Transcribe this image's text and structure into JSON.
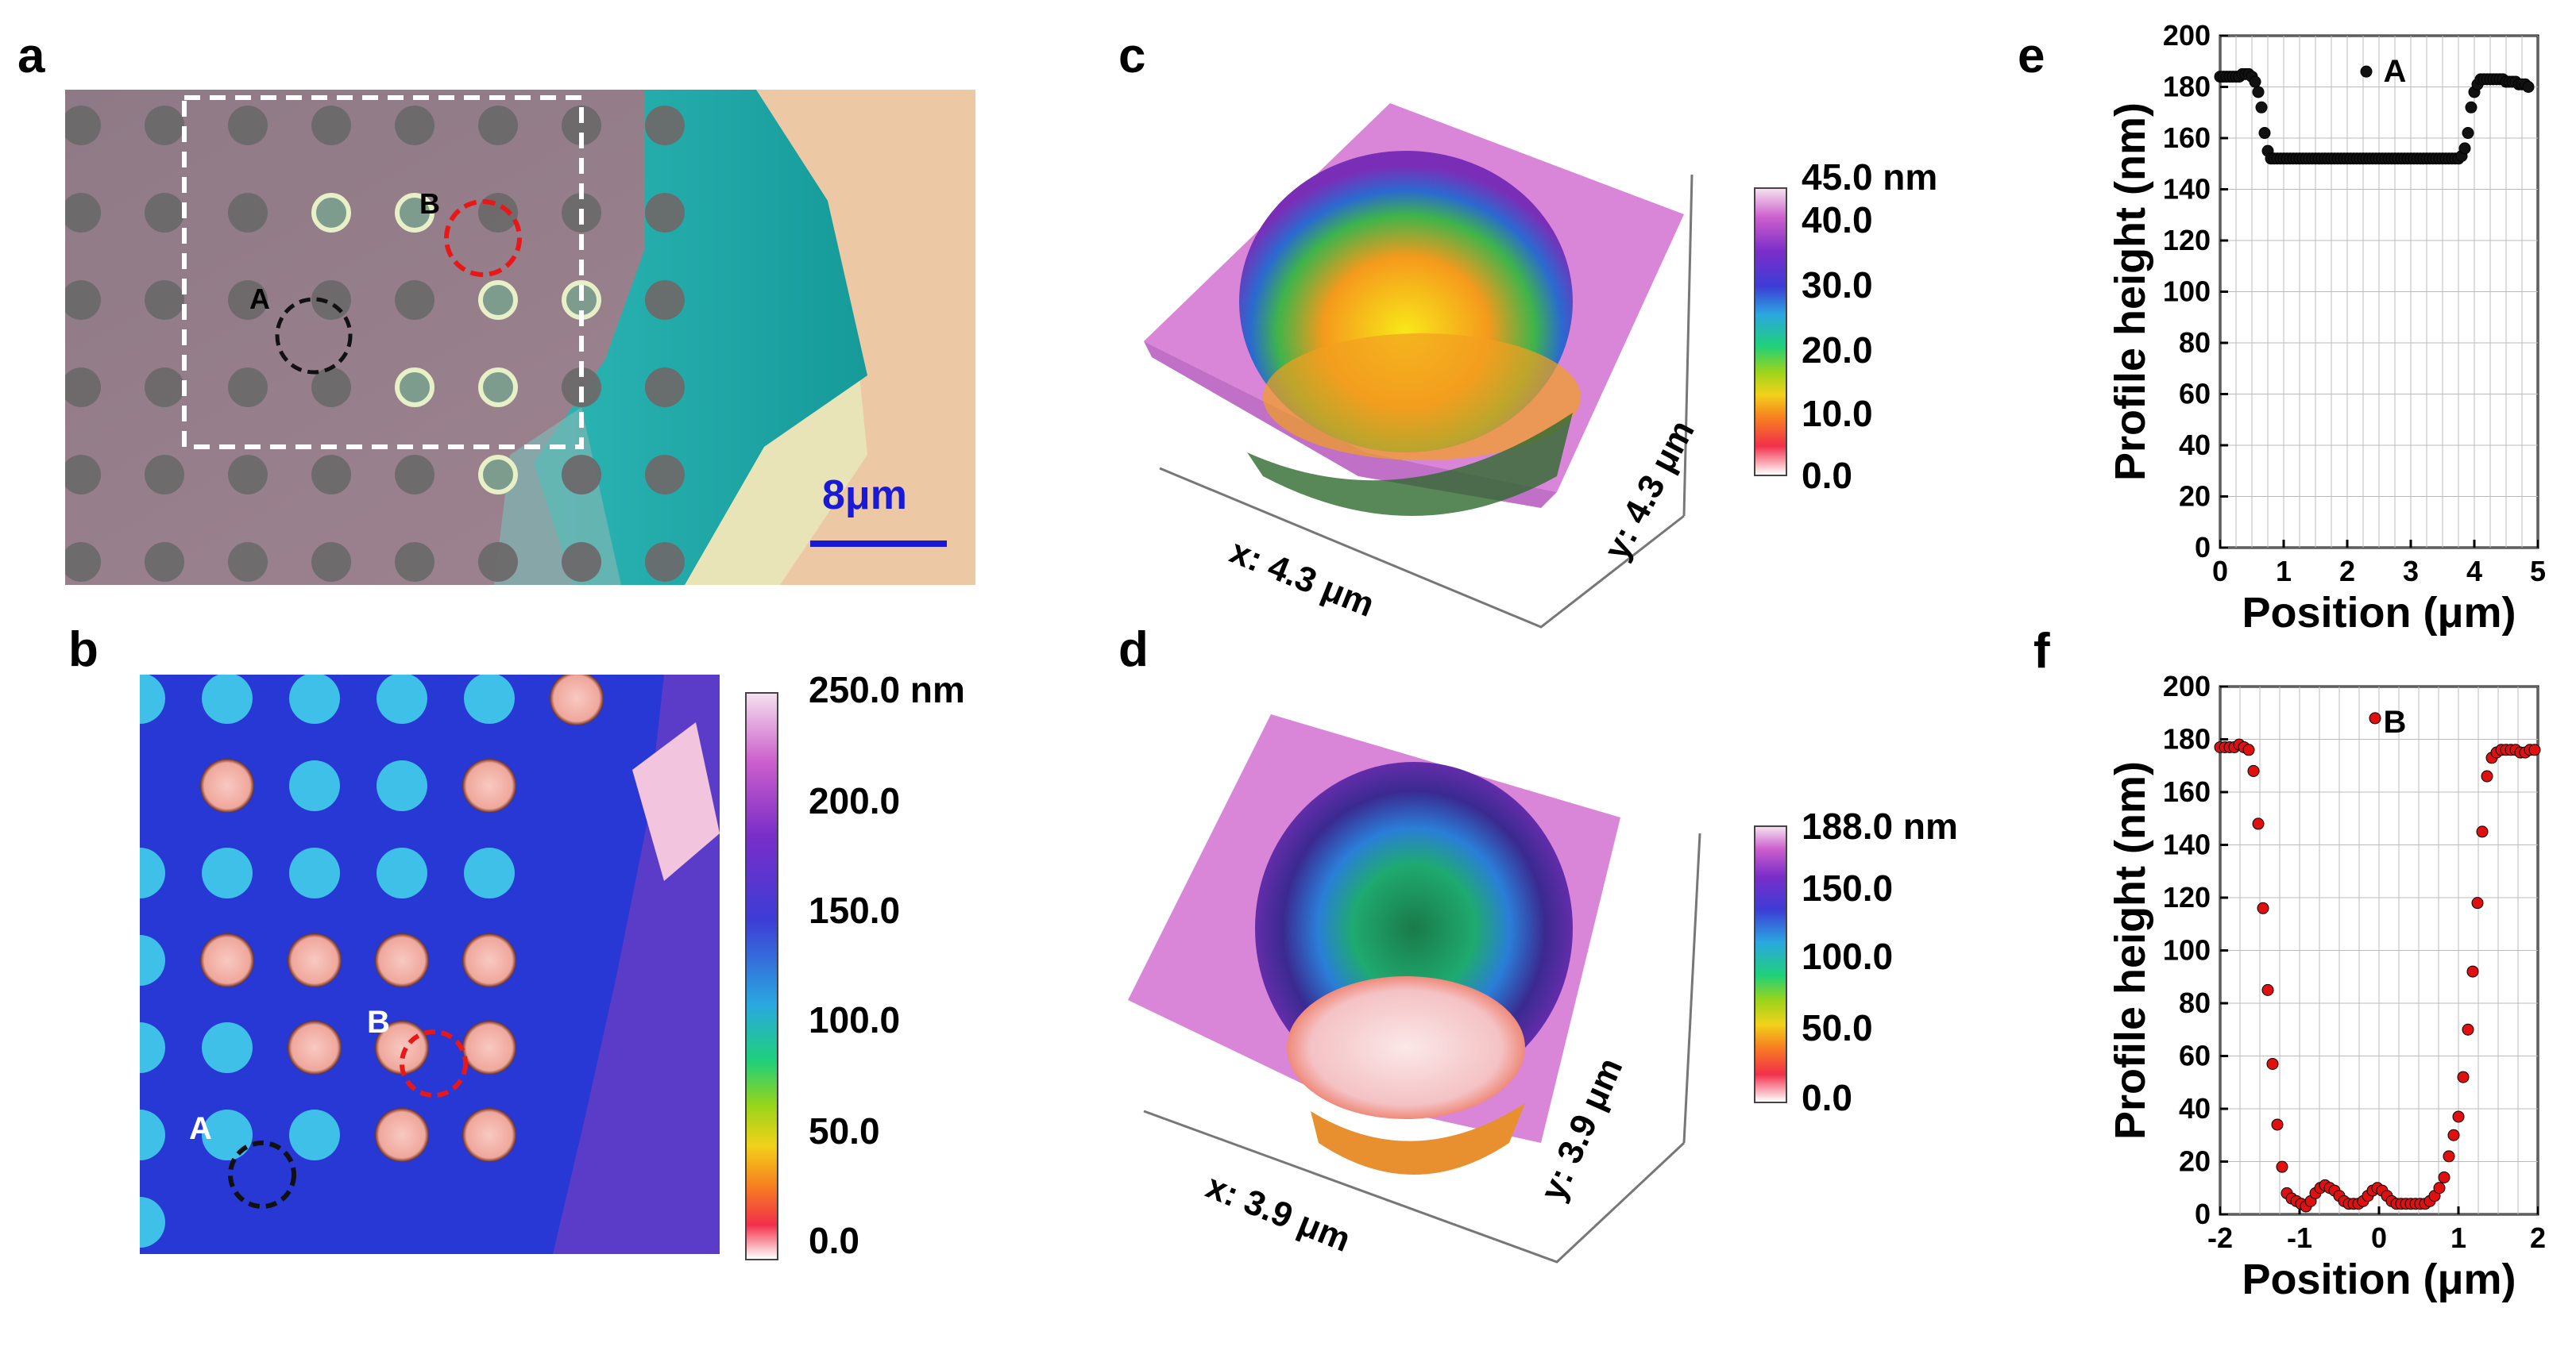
{
  "panels": {
    "a": {
      "label": "a",
      "marker_a": "A",
      "marker_b": "B",
      "scalebar": "8μm",
      "colors": {
        "substrate": "#9b7f8a",
        "holes": "#6e6a6c",
        "flake": "#1aa6a6",
        "right": "#eec9a6",
        "scale": "#1a1ad6"
      }
    },
    "b": {
      "label": "b",
      "marker_a": "A",
      "marker_b": "B",
      "colorbar": {
        "ticks": [
          "250.0 nm",
          "200.0",
          "150.0",
          "100.0",
          "50.0",
          "0.0"
        ]
      }
    },
    "c": {
      "label": "c",
      "x_axis": "x: 4.3 μm",
      "y_axis": "y: 4.3 μm",
      "colorbar": {
        "ticks": [
          "45.0 nm",
          "40.0",
          "30.0",
          "20.0",
          "10.0",
          "0.0"
        ]
      }
    },
    "d": {
      "label": "d",
      "x_axis": "x: 3.9 μm",
      "y_axis": "y: 3.9 μm",
      "colorbar": {
        "ticks": [
          "188.0 nm",
          "150.0",
          "100.0",
          "50.0",
          "0.0"
        ]
      }
    },
    "e": {
      "label": "e"
    },
    "f": {
      "label": "f"
    }
  },
  "chart_data": [
    {
      "type": "scatter",
      "id": "e",
      "xlabel": "Position (μm)",
      "ylabel": "Profile height (nm)",
      "xlim": [
        0,
        5
      ],
      "ylim": [
        0,
        200
      ],
      "xticks": [
        0,
        1,
        2,
        3,
        4,
        5
      ],
      "yticks": [
        0,
        20,
        40,
        60,
        80,
        100,
        120,
        140,
        160,
        180,
        200
      ],
      "legend": "A",
      "color": "#111111",
      "x": [
        0.0,
        0.05,
        0.1,
        0.15,
        0.2,
        0.25,
        0.3,
        0.35,
        0.4,
        0.45,
        0.5,
        0.55,
        0.6,
        0.65,
        0.7,
        0.75,
        0.8,
        0.85,
        0.9,
        0.95,
        1.0,
        1.05,
        1.1,
        1.15,
        1.2,
        1.25,
        1.3,
        1.35,
        1.4,
        1.45,
        1.5,
        1.55,
        1.6,
        1.65,
        1.7,
        1.75,
        1.8,
        1.85,
        1.9,
        1.95,
        2.0,
        2.05,
        2.1,
        2.15,
        2.2,
        2.25,
        2.3,
        2.35,
        2.4,
        2.45,
        2.5,
        2.55,
        2.6,
        2.65,
        2.7,
        2.75,
        2.8,
        2.85,
        2.9,
        2.95,
        3.0,
        3.05,
        3.1,
        3.15,
        3.2,
        3.25,
        3.3,
        3.35,
        3.4,
        3.45,
        3.5,
        3.55,
        3.6,
        3.65,
        3.7,
        3.75,
        3.8,
        3.85,
        3.9,
        3.95,
        4.0,
        4.05,
        4.1,
        4.15,
        4.2,
        4.25,
        4.3,
        4.35,
        4.4,
        4.45,
        4.5,
        4.55,
        4.6,
        4.65,
        4.7,
        4.75,
        4.8,
        4.85
      ],
      "y": [
        184,
        184,
        184,
        184,
        184,
        184,
        184,
        185,
        185,
        185,
        184,
        182,
        178,
        172,
        162,
        155,
        152,
        152,
        152,
        152,
        152,
        152,
        152,
        152,
        152,
        152,
        152,
        152,
        152,
        152,
        152,
        152,
        152,
        152,
        152,
        152,
        152,
        152,
        152,
        152,
        152,
        152,
        152,
        152,
        152,
        152,
        152,
        152,
        152,
        152,
        152,
        152,
        152,
        152,
        152,
        152,
        152,
        152,
        152,
        152,
        152,
        152,
        152,
        152,
        152,
        152,
        152,
        152,
        152,
        152,
        152,
        152,
        152,
        152,
        152,
        152,
        153,
        156,
        162,
        172,
        178,
        181,
        183,
        183,
        183,
        183,
        183,
        183,
        183,
        183,
        182,
        182,
        182,
        182,
        181,
        181,
        181,
        180
      ]
    },
    {
      "type": "scatter",
      "id": "f",
      "xlabel": "Position (μm)",
      "ylabel": "Profile height (nm)",
      "xlim": [
        -2,
        2
      ],
      "ylim": [
        0,
        200
      ],
      "xticks": [
        -2,
        -1,
        0,
        1,
        2
      ],
      "yticks": [
        0,
        20,
        40,
        60,
        80,
        100,
        120,
        140,
        160,
        180,
        200
      ],
      "legend": "B",
      "color": "#e01010",
      "x": [
        -2.0,
        -1.94,
        -1.88,
        -1.82,
        -1.76,
        -1.7,
        -1.64,
        -1.58,
        -1.52,
        -1.46,
        -1.4,
        -1.34,
        -1.28,
        -1.22,
        -1.16,
        -1.1,
        -1.04,
        -0.98,
        -0.92,
        -0.86,
        -0.8,
        -0.74,
        -0.68,
        -0.62,
        -0.56,
        -0.5,
        -0.44,
        -0.38,
        -0.32,
        -0.26,
        -0.2,
        -0.14,
        -0.08,
        -0.02,
        0.04,
        0.1,
        0.16,
        0.22,
        0.28,
        0.34,
        0.4,
        0.46,
        0.52,
        0.58,
        0.64,
        0.7,
        0.76,
        0.82,
        0.88,
        0.94,
        1.0,
        1.06,
        1.12,
        1.18,
        1.24,
        1.3,
        1.36,
        1.42,
        1.48,
        1.54,
        1.6,
        1.66,
        1.72,
        1.78,
        1.84,
        1.9,
        1.96
      ],
      "y": [
        177,
        177,
        177,
        177,
        178,
        177,
        176,
        168,
        148,
        116,
        85,
        57,
        34,
        18,
        8,
        6,
        5,
        4,
        3,
        5,
        8,
        10,
        11,
        10,
        9,
        7,
        5,
        4,
        4,
        4,
        5,
        7,
        9,
        10,
        9,
        7,
        5,
        4,
        4,
        4,
        4,
        4,
        4,
        4,
        5,
        7,
        10,
        14,
        22,
        30,
        37,
        52,
        70,
        92,
        118,
        145,
        166,
        173,
        175,
        176,
        176,
        176,
        176,
        175,
        175,
        176,
        176
      ],
      "outlier": {
        "x": -0.05,
        "y": 188
      },
      "outlier_e": {
        "x": 2.3,
        "y": 186
      }
    }
  ]
}
